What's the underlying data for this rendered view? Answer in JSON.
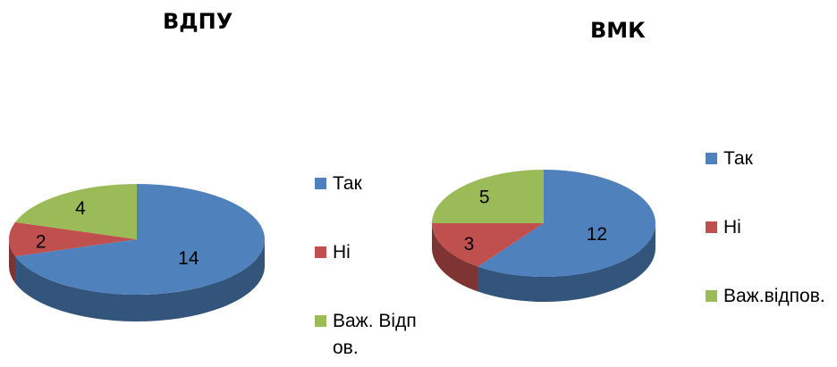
{
  "chart_data": [
    {
      "type": "pie",
      "title": "ВДПУ",
      "categories": [
        "Так",
        "Ні",
        "Важ. Відпов."
      ],
      "values": [
        14,
        2,
        4
      ],
      "colors": [
        "#4f81bd",
        "#c0504d",
        "#9bbb59"
      ],
      "legend": "right"
    },
    {
      "type": "pie",
      "title": "ВМК",
      "categories": [
        "Так",
        "Ні",
        "Важ.відпов."
      ],
      "values": [
        12,
        3,
        5
      ],
      "colors": [
        "#4f81bd",
        "#c0504d",
        "#9bbb59"
      ],
      "legend": "right"
    }
  ]
}
